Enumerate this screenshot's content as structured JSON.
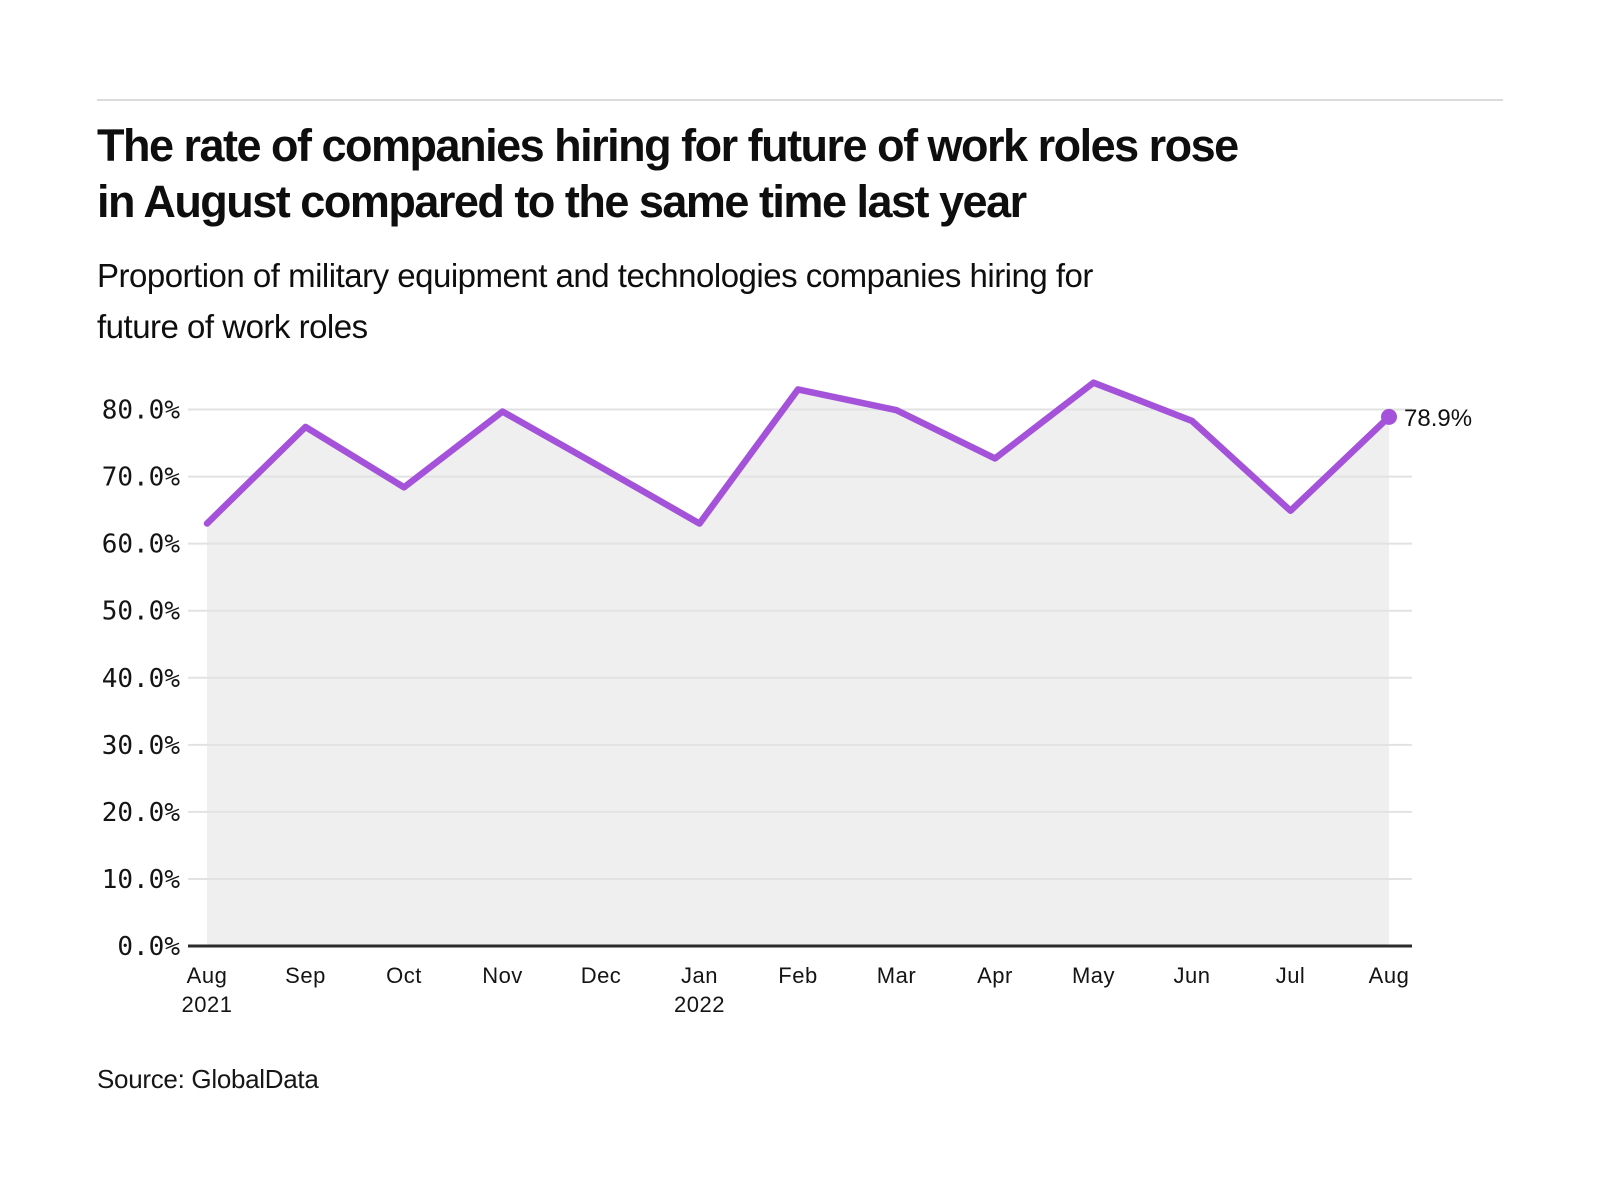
{
  "page": {
    "title_lines": [
      "The rate of companies hiring for future of work roles rose",
      "in August compared to the same time last year"
    ],
    "subtitle_lines": [
      "Proportion of military equipment and technologies companies hiring for",
      "future of work roles"
    ],
    "source_label": "Source: GlobalData"
  },
  "colors": {
    "line": "#a452d9",
    "fill": "#efefef",
    "gridline": "#e2e2e2",
    "axis": "#2b2b2b",
    "text": "#141414",
    "rule": "#dbdbdb"
  },
  "chart_data": {
    "type": "line",
    "title": "The rate of companies hiring for future of work roles rose in August compared to the same time last year",
    "subtitle": "Proportion of military equipment and technologies companies hiring for future of work roles",
    "categories": [
      {
        "label": "Aug",
        "year": "2021"
      },
      {
        "label": "Sep"
      },
      {
        "label": "Oct"
      },
      {
        "label": "Nov"
      },
      {
        "label": "Dec"
      },
      {
        "label": "Jan",
        "year": "2022"
      },
      {
        "label": "Feb"
      },
      {
        "label": "Mar"
      },
      {
        "label": "Apr"
      },
      {
        "label": "May"
      },
      {
        "label": "Jun"
      },
      {
        "label": "Jul"
      },
      {
        "label": "Aug"
      }
    ],
    "values": [
      63.0,
      77.4,
      68.4,
      79.7,
      71.4,
      63.0,
      83.0,
      79.9,
      72.7,
      84.0,
      78.3,
      64.9,
      78.9
    ],
    "unit": "%",
    "yticks": [
      0,
      10,
      20,
      30,
      40,
      50,
      60,
      70,
      80
    ],
    "ylim": [
      0,
      85
    ],
    "xlabel": "",
    "ylabel": "",
    "grid": true,
    "area_fill": true,
    "legend_position": "none",
    "end_label": "78.9%",
    "source": "Source: GlobalData"
  }
}
